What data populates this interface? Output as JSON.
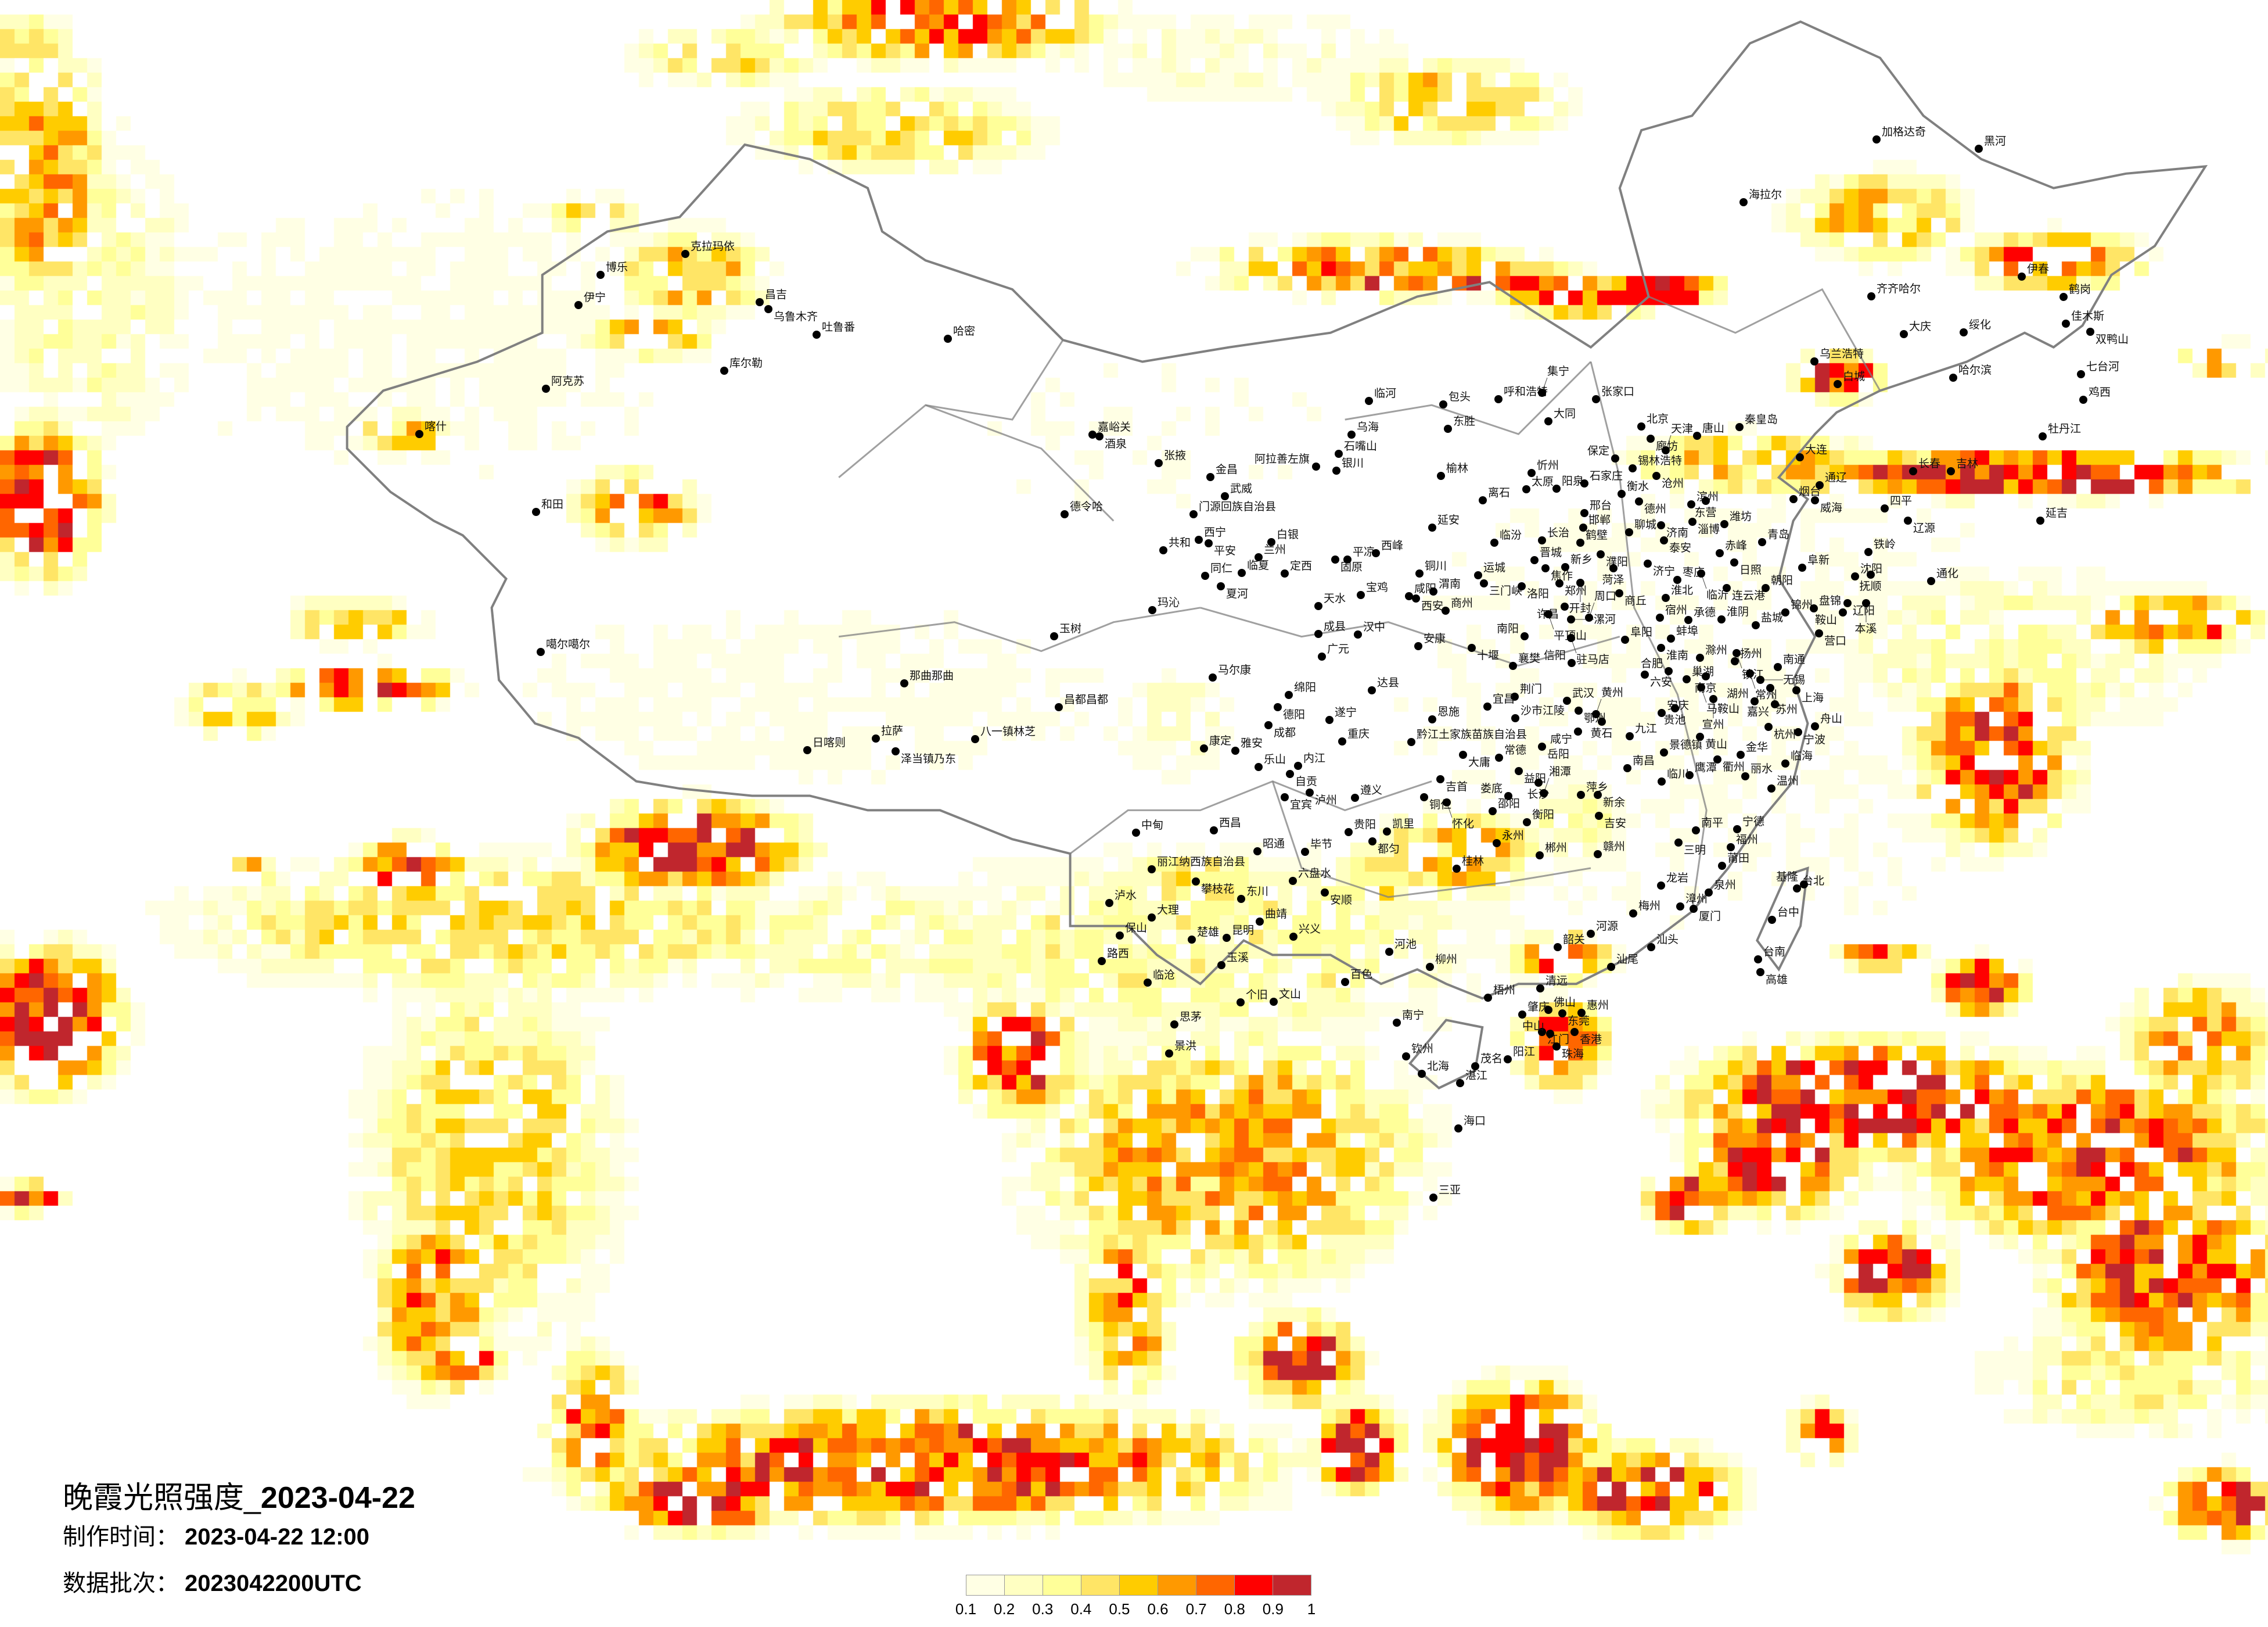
{
  "title": {
    "main": "晚霞光照强度_",
    "date": "2023-04-22"
  },
  "made_time": {
    "label": "制作时间：",
    "value": "2023-04-22 12:00"
  },
  "data_batch": {
    "label": "数据批次：",
    "value": "2023042200UTC"
  },
  "legend": {
    "labels": [
      "0.1",
      "0.2",
      "0.3",
      "0.4",
      "0.5",
      "0.6",
      "0.7",
      "0.8",
      "0.9",
      "1"
    ],
    "colors": [
      "#ffffe4",
      "#ffffc2",
      "#ffff99",
      "#ffe566",
      "#ffcc00",
      "#ff9900",
      "#ff6600",
      "#ff0000",
      "#c0262d"
    ]
  },
  "map": {
    "variable": "晚霞光照强度",
    "border_color": "#808080",
    "city_marker_color": "#000000",
    "cities": [
      "加格达奇",
      "黑河",
      "海拉尔",
      "齐齐哈尔",
      "大庆",
      "绥化",
      "伊春",
      "鹤岗",
      "佳木斯",
      "双鸭山",
      "乌兰浩特",
      "白城",
      "哈尔滨",
      "七台河",
      "鸡西",
      "牡丹江",
      "锡林浩特",
      "长春",
      "吉林",
      "通辽",
      "四平",
      "辽源",
      "延吉",
      "赤峰",
      "铁岭",
      "阜新",
      "沈阳",
      "抚顺",
      "通化",
      "朝阳",
      "承德",
      "锦州",
      "盘锦",
      "辽阳",
      "本溪",
      "鞍山",
      "营口",
      "克拉玛依",
      "博乐",
      "伊宁",
      "昌吉",
      "乌鲁木齐",
      "吐鲁番",
      "哈密",
      "库尔勒",
      "阿克苏",
      "喀什",
      "和田",
      "噶尔噶尔",
      "那曲那曲",
      "拉萨",
      "日喀则",
      "泽当镇乃东",
      "八一镇林芝",
      "玉树",
      "昌都昌都",
      "临河",
      "包头",
      "呼和浩特",
      "集宁",
      "张家口",
      "乌海",
      "东胜",
      "大同",
      "北京",
      "唐山",
      "秦皇岛",
      "廊坊",
      "天津",
      "保定",
      "石嘴山",
      "银川",
      "榆林",
      "忻州",
      "太原",
      "阳泉",
      "石家庄",
      "沧州",
      "大连",
      "衡水",
      "德州",
      "离石",
      "滨州",
      "东营",
      "烟台",
      "威海",
      "邢台",
      "淄博",
      "潍坊",
      "邯郸",
      "济南",
      "聊城",
      "延安",
      "泰安",
      "青岛",
      "临汾",
      "长治",
      "鹤壁",
      "濮阳",
      "平凉",
      "西峰",
      "晋城",
      "焦作",
      "新乡",
      "菏泽",
      "济宁",
      "日照",
      "铜川",
      "运城",
      "三门峡",
      "洛阳",
      "郑州",
      "开封",
      "枣庄",
      "临沂",
      "连云港",
      "宝鸡",
      "咸阳",
      "西安",
      "渭南",
      "商丘",
      "商州",
      "许昌",
      "平顶山",
      "漯河",
      "周口",
      "淮北",
      "宿州",
      "淮阴",
      "盐城",
      "汉中",
      "南阳",
      "驻马店",
      "阜阳",
      "蚌埠",
      "淮南",
      "安康",
      "十堰",
      "滁州",
      "扬州",
      "镇江",
      "南通",
      "襄樊",
      "信阳",
      "六安",
      "合肥",
      "巢湖",
      "南京",
      "常州",
      "无锡",
      "马鞍山",
      "苏州",
      "上海",
      "达县",
      "荆门",
      "宜昌",
      "武汉",
      "宣州",
      "湖州",
      "嘉兴",
      "恩施",
      "沙市江陵",
      "鄂州",
      "黄州",
      "黄石",
      "安庆",
      "贵池",
      "杭州",
      "舟山",
      "宁波",
      "重庆",
      "黔江土家族苗族自治县",
      "咸宁",
      "九江",
      "黄山",
      "岳阳",
      "景德镇",
      "衢州",
      "金华",
      "大庸",
      "常德",
      "临海",
      "南昌",
      "益阳",
      "鹰潭",
      "丽水",
      "吉首",
      "长沙",
      "温州",
      "临川",
      "遵义",
      "铜仁",
      "怀化",
      "娄底",
      "湘潭",
      "萍乡",
      "新余",
      "邵阳",
      "吉安",
      "衡阳",
      "贵阳",
      "南平",
      "宁德",
      "三明",
      "凯里",
      "都匀",
      "永州",
      "福州",
      "郴州",
      "赣州",
      "桂林",
      "莆田",
      "广元",
      "马尔康",
      "绵阳",
      "德阳",
      "成都",
      "遂宁",
      "康定",
      "雅安",
      "乐山",
      "内江",
      "自贡",
      "宜宾",
      "泸州",
      "中甸",
      "西昌",
      "昭通",
      "毕节",
      "丽江纳西族自治县",
      "攀枝花",
      "六盘水",
      "安顺",
      "东川",
      "泸水",
      "大理",
      "曲靖",
      "保山",
      "楚雄",
      "昆明",
      "兴义",
      "河池",
      "路西",
      "玉溪",
      "柳州",
      "韶关",
      "临沧",
      "百色",
      "清远",
      "梧州",
      "个旧",
      "文山",
      "思茅",
      "南宁",
      "肇庆",
      "佛山",
      "东莞",
      "惠州",
      "江门",
      "中山",
      "香港",
      "珠海",
      "景洪",
      "钦州",
      "北海",
      "茂名",
      "阳江",
      "湛江",
      "海口",
      "三亚",
      "嘉峪关",
      "酒泉",
      "张掖",
      "金昌",
      "武威",
      "阿拉善左旗",
      "德令哈",
      "门源回族自治县",
      "西宁",
      "平安",
      "共和",
      "白银",
      "兰州",
      "临夏",
      "定西",
      "同仁",
      "夏河",
      "固原",
      "玛沁",
      "天水",
      "成县",
      "龙岩",
      "漳州",
      "厦门",
      "泉州",
      "梅州",
      "河源",
      "汕头",
      "汕尾",
      "台北",
      "基隆",
      "台中",
      "台南",
      "高雄"
    ]
  }
}
